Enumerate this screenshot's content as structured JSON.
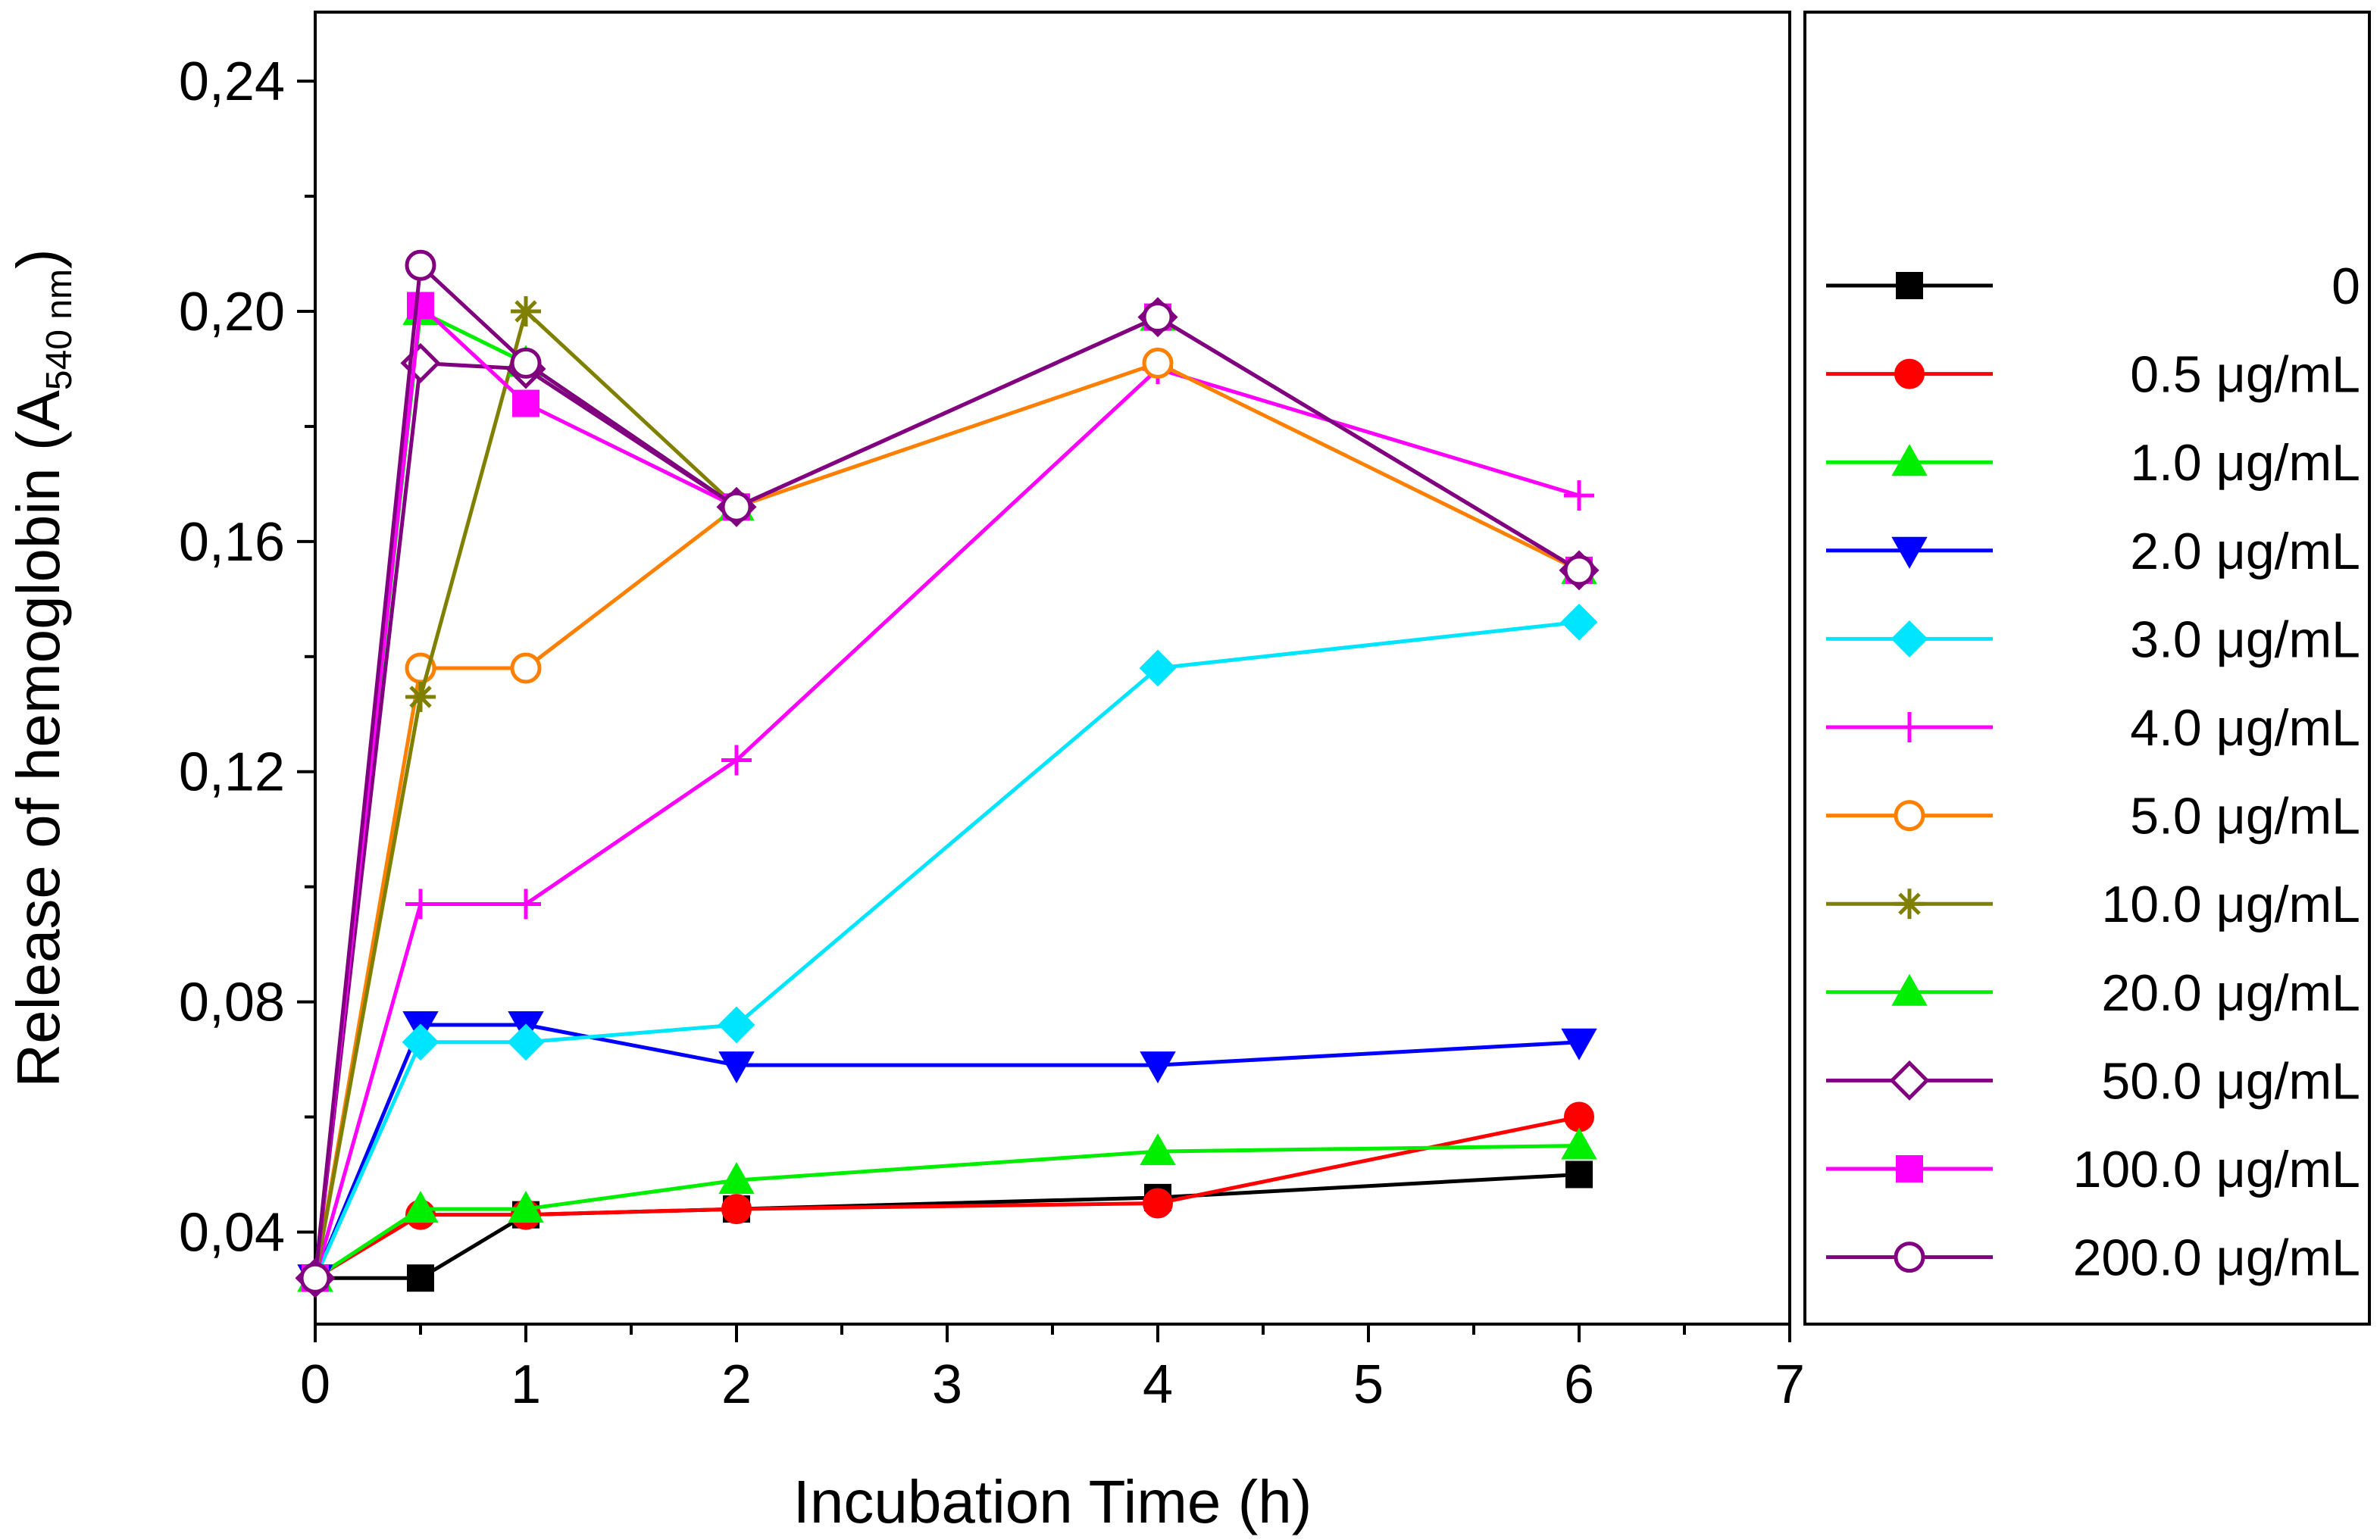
{
  "chart_data": {
    "type": "line",
    "title": "",
    "xlabel": "Incubation Time (h)",
    "ylabel": "Release of hemoglobin (A",
    "ylabel_subscript": "540 nm",
    "ylabel_suffix": ")",
    "xlim": [
      0,
      7
    ],
    "ylim": [
      0.024,
      0.252
    ],
    "x_ticks": [
      0,
      1,
      2,
      3,
      4,
      5,
      6,
      7
    ],
    "x_tick_labels": [
      "0",
      "1",
      "2",
      "3",
      "4",
      "5",
      "6",
      "7"
    ],
    "y_ticks": [
      0.04,
      0.08,
      0.12,
      0.16,
      0.2,
      0.24
    ],
    "y_tick_labels": [
      "0,04",
      "0,08",
      "0,12",
      "0,16",
      "0,20",
      "0,24"
    ],
    "legend_position": "right-outside",
    "x": [
      0,
      0.5,
      1,
      2,
      4,
      6
    ],
    "series": [
      {
        "name": "0",
        "color": "#000000",
        "marker": "square-filled",
        "values": [
          0.032,
          0.032,
          0.043,
          0.044,
          0.046,
          0.05
        ]
      },
      {
        "name": "0.5 μg/mL",
        "color": "#ff0000",
        "marker": "circle-filled",
        "values": [
          0.032,
          0.043,
          0.043,
          0.044,
          0.045,
          0.06
        ]
      },
      {
        "name": "1.0 μg/mL",
        "color": "#00ee00",
        "marker": "triangle-up-filled",
        "values": [
          0.032,
          0.044,
          0.044,
          0.049,
          0.054,
          0.055
        ]
      },
      {
        "name": "2.0 μg/mL",
        "color": "#0000ff",
        "marker": "triangle-down-filled",
        "values": [
          0.032,
          0.076,
          0.076,
          0.069,
          0.069,
          0.073
        ]
      },
      {
        "name": "3.0 μg/mL",
        "color": "#00e5ff",
        "marker": "diamond-filled",
        "values": [
          0.032,
          0.073,
          0.073,
          0.076,
          0.138,
          0.146
        ]
      },
      {
        "name": "4.0 μg/mL",
        "color": "#ff00ff",
        "marker": "plus",
        "values": [
          0.032,
          0.097,
          0.097,
          0.122,
          0.19,
          0.168
        ]
      },
      {
        "name": "5.0 μg/mL",
        "color": "#ff8000",
        "marker": "circle-open",
        "values": [
          0.032,
          0.138,
          0.138,
          0.166,
          0.191,
          0.155
        ]
      },
      {
        "name": "10.0 μg/mL",
        "color": "#808000",
        "marker": "asterisk",
        "values": [
          0.032,
          0.133,
          0.2,
          0.166,
          0.199,
          0.155
        ]
      },
      {
        "name": "20.0 μg/mL",
        "color": "#00ee00",
        "marker": "triangle-up-filled",
        "values": [
          0.032,
          0.2,
          0.191,
          0.166,
          0.199,
          0.155
        ]
      },
      {
        "name": "50.0 μg/mL",
        "color": "#800080",
        "marker": "diamond-open",
        "values": [
          0.032,
          0.191,
          0.19,
          0.166,
          0.199,
          0.155
        ]
      },
      {
        "name": "100.0 μg/mL",
        "color": "#ff00ff",
        "marker": "square-filled",
        "values": [
          0.032,
          0.201,
          0.184,
          0.166,
          0.199,
          0.155
        ]
      },
      {
        "name": "200.0 μg/mL",
        "color": "#800080",
        "marker": "circle-open",
        "values": [
          0.032,
          0.208,
          0.191,
          0.166,
          0.199,
          0.155
        ]
      }
    ]
  }
}
